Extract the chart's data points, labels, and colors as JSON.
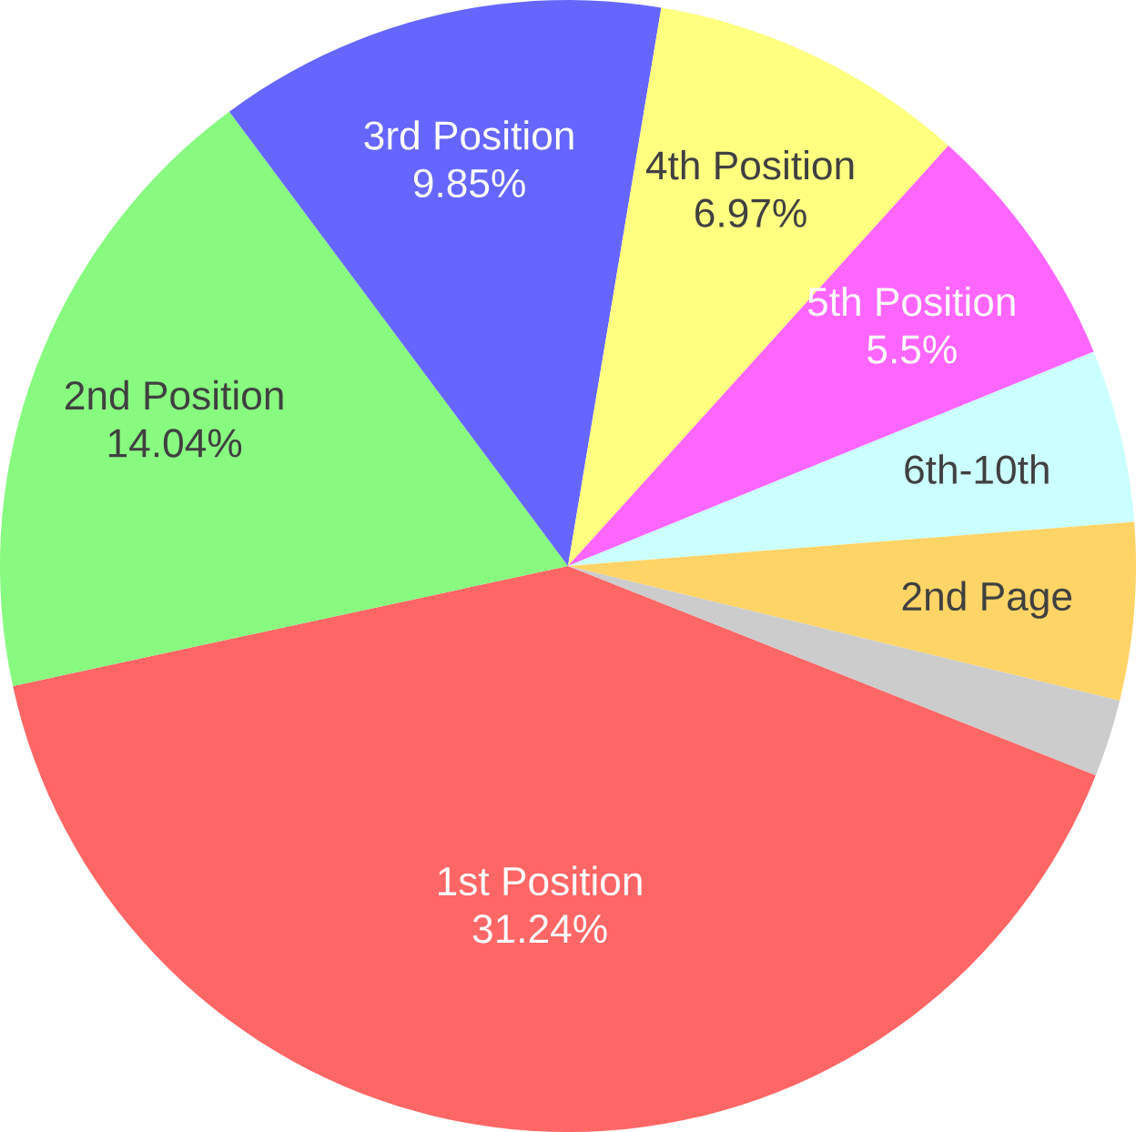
{
  "chart_data": {
    "type": "pie",
    "categories": [
      "1st Position",
      "2nd Position",
      "3rd Position",
      "4th Position",
      "5th Position",
      "6th-10th",
      "2nd Page",
      null
    ],
    "values": [
      31.24,
      14.04,
      9.85,
      6.97,
      5.5,
      3.8,
      3.9,
      1.7
    ],
    "value_labels": [
      "31.24%",
      "14.04%",
      "9.85%",
      "6.97%",
      "5.5%",
      null,
      null,
      null
    ],
    "colors": [
      "#ff6666",
      "#88fa80",
      "#6666ff",
      "#ffff80",
      "#ff66ff",
      "#ccffff",
      "#ffd466",
      "#cccccc"
    ]
  }
}
